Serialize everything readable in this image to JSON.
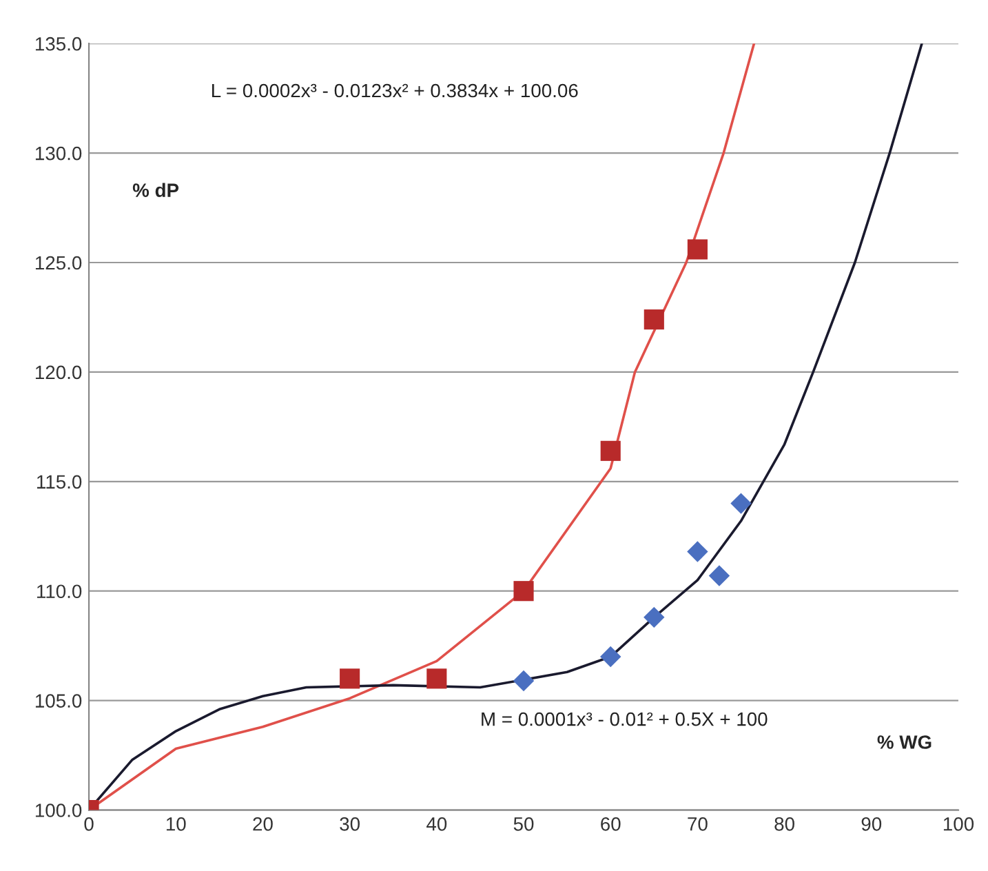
{
  "chart_data": {
    "type": "scatter",
    "xlabel": "% WG",
    "ylabel": "% dP",
    "xlim": [
      0,
      100
    ],
    "xticks": [
      0,
      10,
      20,
      30,
      40,
      50,
      60,
      70,
      80,
      90,
      100
    ],
    "ylim": [
      100,
      135
    ],
    "yticks": [
      {
        "value": 100,
        "label": "100.0"
      },
      {
        "value": 105,
        "label": "105.0"
      },
      {
        "value": 110,
        "label": "110.0"
      },
      {
        "value": 115,
        "label": "115.0"
      },
      {
        "value": 120,
        "label": "120.0"
      },
      {
        "value": 125,
        "label": "125.0"
      },
      {
        "value": 130,
        "label": "130.0"
      },
      {
        "value": 135,
        "label": "135.0"
      }
    ],
    "grid": "y",
    "legend": false,
    "annotations": [
      "L = 0.0002x³ - 0.0123x² + 0.3834x + 100.06",
      "M = 0.0001x³ - 0.01² + 0.5X + 100"
    ],
    "series": [
      {
        "type": "line",
        "marker": "none",
        "line_style": "solid",
        "color": "#e0504a",
        "x": [
          0,
          10,
          20,
          30,
          40,
          50,
          60,
          62.8,
          68.7,
          73.0,
          76.5
        ],
        "values": [
          100,
          102.8,
          103.8,
          105.1,
          106.8,
          110,
          115.6,
          120,
          125,
          130,
          135
        ]
      },
      {
        "type": "line",
        "marker": "none",
        "line_style": "solid",
        "color": "#1a1a2e",
        "x": [
          0,
          5,
          10,
          15,
          20,
          25,
          35,
          45,
          55,
          60,
          65,
          70,
          75,
          80,
          83.3,
          88.1,
          92.1,
          95.8
        ],
        "values": [
          100,
          102.3,
          103.6,
          104.6,
          105.2,
          105.6,
          105.7,
          105.6,
          106.3,
          107.0,
          108.8,
          110.5,
          113.2,
          116.7,
          120,
          125,
          130,
          135
        ]
      },
      {
        "marker": "diamond",
        "color": "#4a6fc0",
        "x": [
          50,
          60,
          65,
          70,
          72.5,
          75
        ],
        "values": [
          105.9,
          107.0,
          108.8,
          111.8,
          110.7,
          114.0
        ]
      },
      {
        "marker": "square",
        "color": "#b82a2a",
        "x": [
          0,
          30,
          40,
          50,
          60,
          65,
          70
        ],
        "values": [
          100,
          106,
          106,
          110,
          116.4,
          122.4,
          125.6
        ]
      }
    ]
  }
}
